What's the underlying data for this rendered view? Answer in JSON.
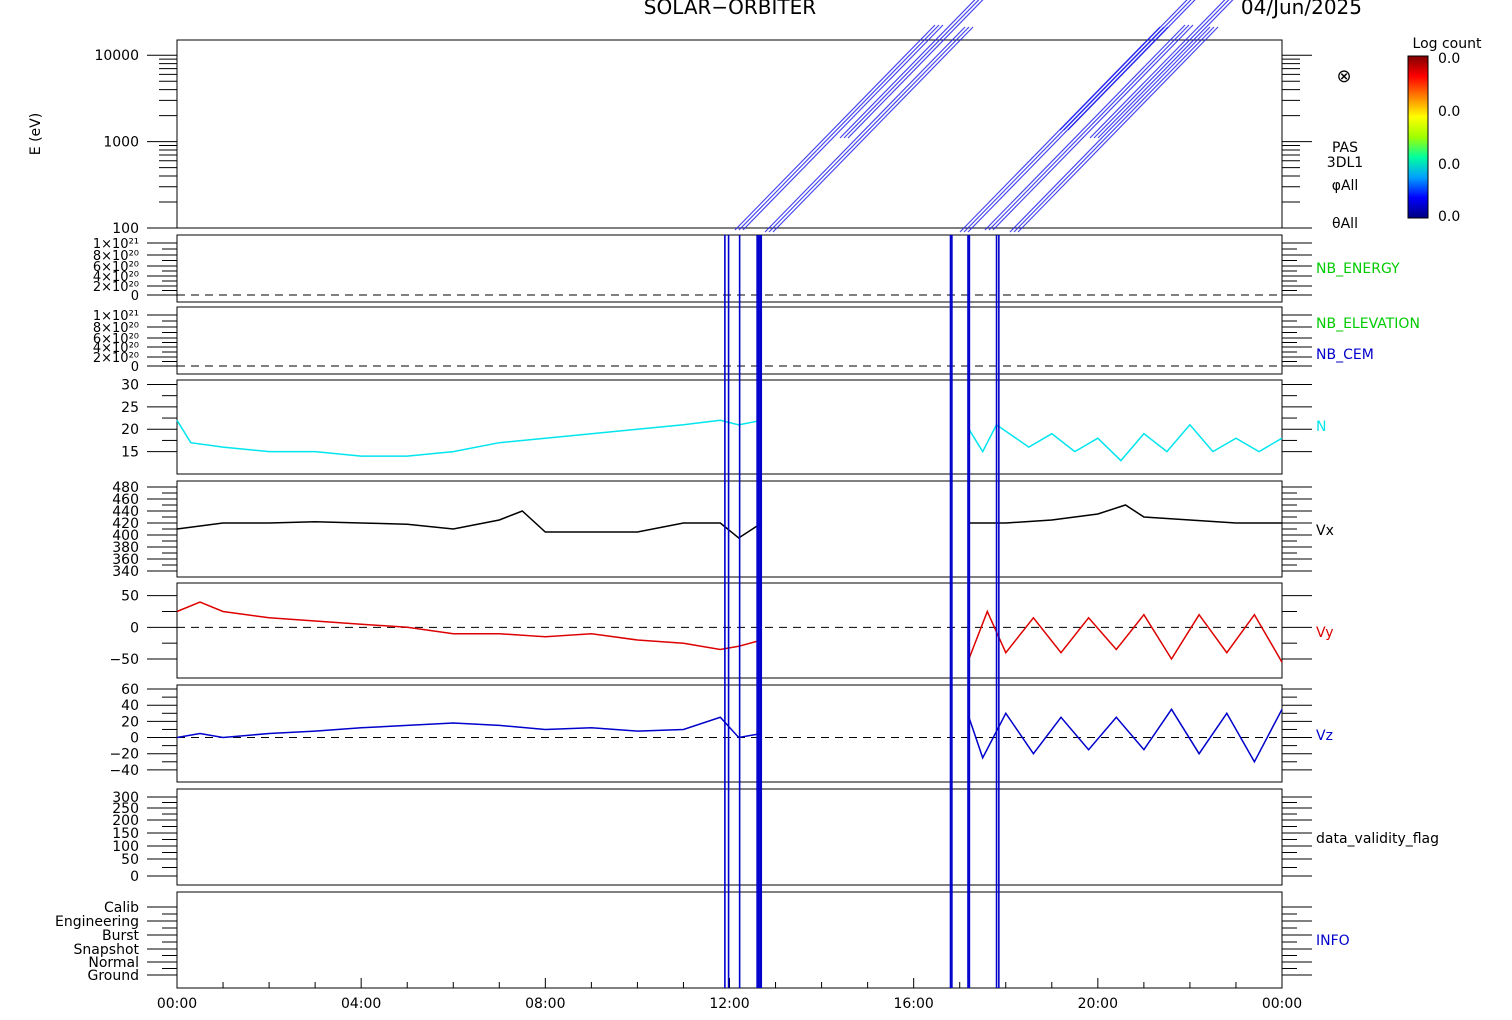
{
  "header": {
    "title": "SOLAR−ORBITER",
    "date": "04/Jun/2025"
  },
  "colorbar": {
    "label": "Log count",
    "ticks": [
      "0.0",
      "0.0",
      "0.0",
      "0.0"
    ],
    "colors": [
      "#000080",
      "#0000ff",
      "#00a0ff",
      "#00ffa0",
      "#a0ff00",
      "#ffff00",
      "#ff8000",
      "#ff0000",
      "#800000"
    ]
  },
  "spectrogram": {
    "ylabel": "E (eV)",
    "yticks": [
      "10000",
      "1000",
      "100"
    ],
    "yrange": [
      100,
      15000
    ],
    "log": true,
    "right_labels": [
      "PAS",
      "3DL1",
      "φAll",
      "θAll"
    ],
    "symbol": "⊗"
  },
  "panels": [
    {
      "key": "nb_energy",
      "label": "NB_ENERGY",
      "label_color": "#00cc00",
      "yticks": [
        "1×10²¹",
        "8×10²⁰",
        "6×10²⁰",
        "4×10²⁰",
        "2×10²⁰",
        "0"
      ],
      "dashed_zero": true
    },
    {
      "key": "nb_elev",
      "label": "NB_ELEVATION",
      "label2": "NB_CEM",
      "label_color": "#00cc00",
      "label2_color": "#0000cc",
      "yticks": [
        "1×10²¹",
        "8×10²⁰",
        "6×10²⁰",
        "4×10²⁰",
        "2×10²⁰",
        "0"
      ],
      "dashed_zero": true
    },
    {
      "key": "n",
      "label": "N",
      "label_color": "#00e5ee",
      "yticks": [
        "30",
        "25",
        "20",
        "15"
      ],
      "ylim": [
        10,
        31
      ]
    },
    {
      "key": "vx",
      "label": "Vx",
      "label_color": "#000000",
      "yticks": [
        "480",
        "460",
        "440",
        "420",
        "400",
        "380",
        "360",
        "340"
      ],
      "ylim": [
        330,
        490
      ]
    },
    {
      "key": "vy",
      "label": "Vy",
      "label_color": "#dd0000",
      "yticks": [
        "50",
        "0",
        "−50"
      ],
      "ylim": [
        -80,
        70
      ],
      "dashed_zero": true
    },
    {
      "key": "vz",
      "label": "Vz",
      "label_color": "#0000cc",
      "yticks": [
        "60",
        "40",
        "20",
        "0",
        "−20",
        "−40"
      ],
      "ylim": [
        -55,
        65
      ],
      "dashed_zero": true
    },
    {
      "key": "dvf",
      "label": "data_validity_flag",
      "label_color": "#000000",
      "yticks": [
        "300",
        "250",
        "200",
        "150",
        "100",
        "50",
        "0"
      ]
    },
    {
      "key": "info",
      "label": "INFO",
      "label_color": "#0000cc",
      "yticks": [
        "Calib",
        "Engineering",
        "Burst",
        "Snapshot",
        "Normal",
        "Ground"
      ]
    }
  ],
  "xaxis": {
    "ticks": [
      "00:00",
      "04:00",
      "08:00",
      "12:00",
      "16:00",
      "20:00",
      "00:00"
    ],
    "range_hours": [
      0,
      24
    ]
  },
  "chart_data": {
    "type": "line",
    "title": "SOLAR−ORBITER",
    "x_unit": "hours of 04/Jun/2025",
    "gap_hours": [
      12.7,
      17.2
    ],
    "event_lines_hours": [
      11.9,
      11.98,
      12.22,
      12.6,
      12.63,
      12.66,
      12.69,
      16.8,
      16.83,
      17.18,
      17.21,
      17.8,
      17.85
    ],
    "series": [
      {
        "name": "N",
        "color": "#00e5ee",
        "x": [
          0,
          0.3,
          1,
          2,
          3,
          4,
          5,
          6,
          7,
          8,
          9,
          10,
          11,
          11.8,
          12.2,
          12.7,
          17.2,
          17.5,
          17.8,
          18.5,
          19,
          19.5,
          20,
          20.5,
          21,
          21.5,
          22,
          22.5,
          23,
          23.5,
          24
        ],
        "y": [
          22,
          17,
          16,
          15,
          15,
          14,
          14,
          15,
          17,
          18,
          19,
          20,
          21,
          22,
          21,
          22,
          20,
          15,
          21,
          16,
          19,
          15,
          18,
          13,
          19,
          15,
          21,
          15,
          18,
          15,
          18
        ]
      },
      {
        "name": "Vx",
        "color": "#000000",
        "x": [
          0,
          1,
          2,
          3,
          4,
          5,
          6,
          7,
          7.5,
          8,
          9,
          10,
          11,
          11.8,
          12.2,
          12.7,
          17.2,
          18,
          19,
          20,
          20.6,
          21,
          22,
          23,
          24
        ],
        "y": [
          410,
          420,
          420,
          422,
          420,
          418,
          410,
          425,
          440,
          405,
          405,
          405,
          420,
          420,
          395,
          420,
          420,
          420,
          425,
          435,
          450,
          430,
          425,
          420,
          420
        ]
      },
      {
        "name": "Vy",
        "color": "#dd0000",
        "x": [
          0,
          0.5,
          1,
          2,
          3,
          4,
          5,
          6,
          7,
          8,
          9,
          10,
          11,
          11.8,
          12.2,
          12.7,
          17.2,
          17.6,
          18,
          18.6,
          19.2,
          19.8,
          20.4,
          21,
          21.6,
          22.2,
          22.8,
          23.4,
          24
        ],
        "y": [
          25,
          40,
          25,
          15,
          10,
          5,
          0,
          -10,
          -10,
          -15,
          -10,
          -20,
          -25,
          -35,
          -30,
          -20,
          -50,
          25,
          -40,
          15,
          -40,
          15,
          -35,
          20,
          -50,
          20,
          -40,
          20,
          -55
        ]
      },
      {
        "name": "Vz",
        "color": "#0000cc",
        "x": [
          0,
          0.5,
          1,
          2,
          3,
          4,
          5,
          6,
          7,
          8,
          9,
          10,
          11,
          11.8,
          12.2,
          12.7,
          17.2,
          17.5,
          18,
          18.6,
          19.2,
          19.8,
          20.4,
          21,
          21.6,
          22.2,
          22.8,
          23.4,
          24
        ],
        "y": [
          0,
          5,
          0,
          5,
          8,
          12,
          15,
          18,
          15,
          10,
          12,
          8,
          10,
          25,
          0,
          5,
          25,
          -25,
          30,
          -20,
          25,
          -15,
          25,
          -15,
          35,
          -20,
          30,
          -30,
          35
        ]
      }
    ]
  }
}
